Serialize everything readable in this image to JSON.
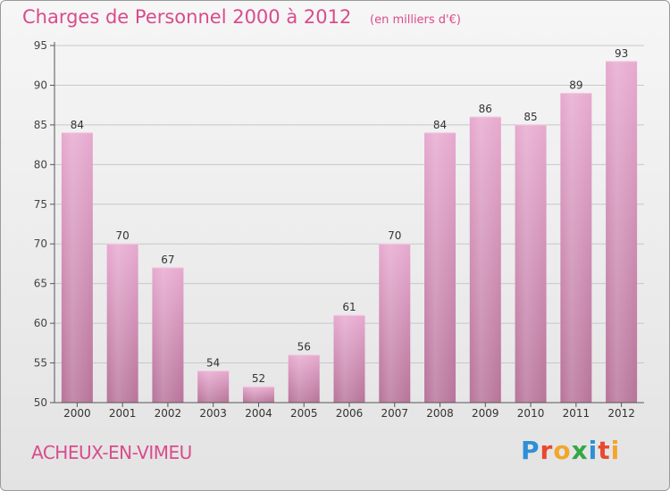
{
  "header": {
    "title": "Charges de Personnel 2000 à 2012",
    "subtitle": "(en milliers d'€)"
  },
  "footer": {
    "commune": "ACHEUX-EN-VIMEU",
    "logo_text": "Proxiti",
    "logo_colors": [
      "#2f8fd6",
      "#e8492d",
      "#f2a62b",
      "#35a745",
      "#2f8fd6",
      "#e8492d",
      "#f2a62b"
    ]
  },
  "colors": {
    "bar_top": "#e7a9cf",
    "bar_bottom": "#b77399",
    "label": "#d94b8c",
    "axis": "#555555",
    "grid": "#c8c8c8"
  },
  "chart_data": {
    "type": "bar",
    "title": "Charges de Personnel 2000 à 2012",
    "subtitle": "(en milliers d'€)",
    "categories": [
      "2000",
      "2001",
      "2002",
      "2003",
      "2004",
      "2005",
      "2006",
      "2007",
      "2008",
      "2009",
      "2010",
      "2011",
      "2012"
    ],
    "values": [
      84,
      70,
      67,
      54,
      52,
      56,
      61,
      70,
      84,
      86,
      85,
      89,
      93
    ],
    "ylim": [
      50,
      95
    ],
    "yticks": [
      50,
      55,
      60,
      65,
      70,
      75,
      80,
      85,
      90,
      95
    ],
    "grid": true,
    "data_labels": true
  }
}
